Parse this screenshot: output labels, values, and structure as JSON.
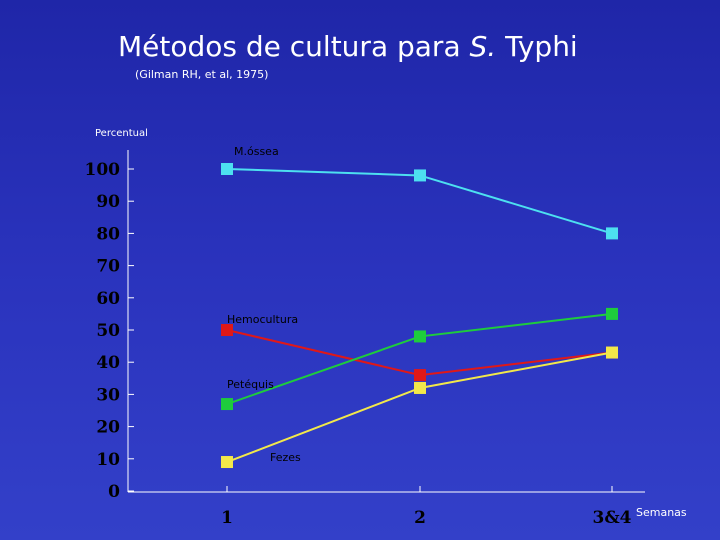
{
  "title": {
    "main": "Métodos de cultura para ",
    "italic": "S.",
    "rest": " Typhi"
  },
  "subtitle": "(Gilman RH, et al, 1975)",
  "chart_data": {
    "type": "line",
    "ylabel": "Percentual",
    "xlabel": "Semanas",
    "categories": [
      "1",
      "2",
      "3&4"
    ],
    "yticks": [
      0,
      10,
      20,
      30,
      40,
      50,
      60,
      70,
      80,
      90,
      100
    ],
    "ylim": [
      0,
      100
    ],
    "grid": false,
    "series": [
      {
        "name": "M.óssea",
        "values": [
          100,
          98,
          80
        ],
        "color": "#4de0f0"
      },
      {
        "name": "Hemocultura",
        "values": [
          50,
          36,
          43
        ],
        "color": "#e01818"
      },
      {
        "name": "Petéquis",
        "values": [
          27,
          48,
          55
        ],
        "color": "#1ecc3c"
      },
      {
        "name": "Fezes",
        "values": [
          9,
          32,
          43
        ],
        "color": "#f2e84a"
      }
    ]
  }
}
